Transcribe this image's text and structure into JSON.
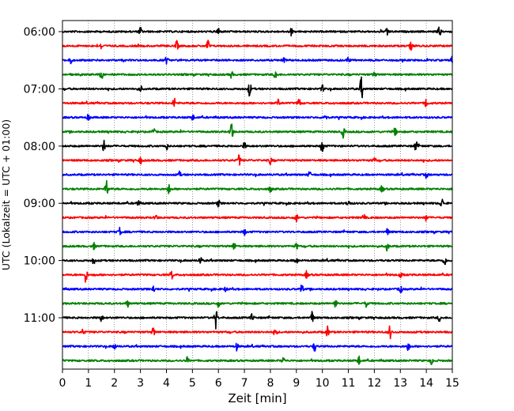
{
  "chart_data": {
    "type": "line",
    "title": "",
    "xlabel": "Zeit  [min]",
    "ylabel": "UTC (Lokalzeit = UTC + 01:00)",
    "xlim": [
      0,
      15
    ],
    "x_ticks": [
      0,
      1,
      2,
      3,
      4,
      5,
      6,
      7,
      8,
      9,
      10,
      11,
      12,
      13,
      14,
      15
    ],
    "x_tick_labels": [
      "0",
      "1",
      "2",
      "3",
      "4",
      "5",
      "6",
      "7",
      "8",
      "9",
      "10",
      "11",
      "12",
      "13",
      "14",
      "15"
    ],
    "y_tick_labels": [
      "06:00",
      "07:00",
      "08:00",
      "09:00",
      "10:00",
      "11:00"
    ],
    "grid": "vertical dotted",
    "trace_minutes": 15,
    "colors": [
      "#000000",
      "#ff0000",
      "#0000ff",
      "#008000"
    ],
    "traces": [
      {
        "start": "06:00",
        "events": [
          [
            12.5,
            0.5
          ],
          [
            14.5,
            0.5
          ],
          [
            3.0,
            0.4
          ],
          [
            6.0,
            0.4
          ],
          [
            8.8,
            0.35
          ]
        ]
      },
      {
        "start": "06:15",
        "events": [
          [
            5.6,
            0.6
          ],
          [
            4.4,
            0.45
          ],
          [
            13.4,
            0.35
          ],
          [
            1.5,
            0.3
          ]
        ]
      },
      {
        "start": "06:30",
        "events": [
          [
            0.3,
            0.4
          ],
          [
            15.0,
            0.4
          ],
          [
            4.0,
            0.3
          ],
          [
            8.5,
            0.3
          ],
          [
            11.0,
            0.3
          ]
        ]
      },
      {
        "start": "06:45",
        "events": [
          [
            8.2,
            0.55
          ],
          [
            1.5,
            0.5
          ],
          [
            6.5,
            0.3
          ],
          [
            12.0,
            0.3
          ]
        ]
      },
      {
        "start": "07:00",
        "events": [
          [
            11.5,
            1.2
          ],
          [
            7.2,
            0.75
          ],
          [
            3.0,
            0.3
          ],
          [
            10.0,
            0.3
          ]
        ]
      },
      {
        "start": "07:15",
        "events": [
          [
            14.0,
            0.6
          ],
          [
            9.1,
            0.45
          ],
          [
            4.3,
            0.45
          ],
          [
            8.3,
            0.35
          ]
        ]
      },
      {
        "start": "07:30",
        "events": [
          [
            10.1,
            0.45
          ],
          [
            5.0,
            0.3
          ],
          [
            1.0,
            0.3
          ]
        ]
      },
      {
        "start": "07:45",
        "events": [
          [
            6.5,
            1.25
          ],
          [
            10.8,
            0.5
          ],
          [
            12.8,
            0.4
          ],
          [
            3.5,
            0.3
          ]
        ]
      },
      {
        "start": "08:00",
        "events": [
          [
            10.0,
            0.85
          ],
          [
            1.6,
            0.6
          ],
          [
            13.6,
            0.5
          ],
          [
            4.0,
            0.35
          ],
          [
            7.0,
            0.3
          ]
        ]
      },
      {
        "start": "08:15",
        "events": [
          [
            6.8,
            0.5
          ],
          [
            8.0,
            0.35
          ],
          [
            3.0,
            0.3
          ],
          [
            12.0,
            0.3
          ]
        ]
      },
      {
        "start": "08:30",
        "events": [
          [
            4.5,
            0.3
          ],
          [
            9.5,
            0.3
          ],
          [
            14.0,
            0.3
          ]
        ]
      },
      {
        "start": "08:45",
        "events": [
          [
            1.7,
            1.0
          ],
          [
            4.1,
            0.45
          ],
          [
            12.3,
            0.35
          ],
          [
            8.0,
            0.3
          ]
        ]
      },
      {
        "start": "09:00",
        "events": [
          [
            14.6,
            0.45
          ],
          [
            11.0,
            0.35
          ],
          [
            6.0,
            0.3
          ],
          [
            2.9,
            0.3
          ]
        ]
      },
      {
        "start": "09:15",
        "events": [
          [
            9.0,
            0.35
          ],
          [
            11.6,
            0.35
          ],
          [
            3.6,
            0.3
          ],
          [
            14.0,
            0.3
          ]
        ]
      },
      {
        "start": "09:30",
        "events": [
          [
            2.2,
            0.4
          ],
          [
            7.0,
            0.3
          ],
          [
            12.5,
            0.3
          ]
        ]
      },
      {
        "start": "09:45",
        "events": [
          [
            12.5,
            0.45
          ],
          [
            6.6,
            0.35
          ],
          [
            1.2,
            0.3
          ],
          [
            9.0,
            0.3
          ]
        ]
      },
      {
        "start": "10:00",
        "events": [
          [
            14.7,
            0.5
          ],
          [
            5.3,
            0.45
          ],
          [
            1.2,
            0.35
          ],
          [
            9.0,
            0.3
          ]
        ]
      },
      {
        "start": "10:15",
        "events": [
          [
            0.9,
            0.7
          ],
          [
            4.2,
            0.4
          ],
          [
            9.4,
            0.35
          ],
          [
            13.0,
            0.3
          ]
        ]
      },
      {
        "start": "10:30",
        "events": [
          [
            9.2,
            0.5
          ],
          [
            13.0,
            0.5
          ],
          [
            3.5,
            0.3
          ],
          [
            6.3,
            0.3
          ]
        ]
      },
      {
        "start": "10:45",
        "events": [
          [
            10.5,
            0.45
          ],
          [
            11.7,
            0.35
          ],
          [
            2.5,
            0.3
          ],
          [
            6.0,
            0.3
          ]
        ]
      },
      {
        "start": "11:00",
        "events": [
          [
            5.9,
            1.0
          ],
          [
            9.6,
            0.6
          ],
          [
            7.3,
            0.4
          ],
          [
            1.5,
            0.35
          ],
          [
            14.5,
            0.3
          ]
        ]
      },
      {
        "start": "11:15",
        "events": [
          [
            12.6,
            0.6
          ],
          [
            10.2,
            0.5
          ],
          [
            8.2,
            0.45
          ],
          [
            3.5,
            0.4
          ],
          [
            0.8,
            0.3
          ]
        ]
      },
      {
        "start": "11:30",
        "events": [
          [
            9.7,
            0.45
          ],
          [
            6.7,
            0.35
          ],
          [
            13.3,
            0.35
          ],
          [
            2.0,
            0.3
          ]
        ]
      },
      {
        "start": "11:45",
        "events": [
          [
            11.4,
            0.4
          ],
          [
            4.8,
            0.3
          ],
          [
            8.5,
            0.3
          ],
          [
            14.2,
            0.3
          ]
        ]
      }
    ]
  }
}
